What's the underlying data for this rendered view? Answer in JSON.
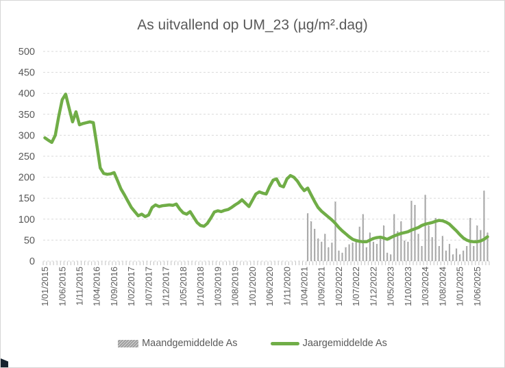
{
  "colors": {
    "line": "#70AD47",
    "bar": "#A6A6A6",
    "text": "#595959",
    "grid": "#D9D9D9",
    "axis_tick": "#C0C0C0",
    "artifact": "#16222E"
  },
  "chart_data": {
    "type": "bar",
    "subtype": "combo-bar-line",
    "title": "As uitvallend op UM_23 (µg/m².dag)",
    "xlabel": "",
    "ylabel": "",
    "grid": "horizontal-dashed",
    "legend_position": "bottom",
    "y_axis": {
      "min": 0,
      "max": 500,
      "step": 50,
      "tick_labels": [
        "0",
        "50",
        "100",
        "150",
        "200",
        "250",
        "300",
        "350",
        "400",
        "450",
        "500"
      ]
    },
    "x_axis": {
      "unit": "month",
      "first_month": "1/01/2015",
      "last_month": "1/09/2025",
      "label_every_n_months": 5,
      "tick_labels": [
        "1/01/2015",
        "1/06/2015",
        "1/11/2015",
        "1/04/2016",
        "1/09/2016",
        "1/02/2017",
        "1/07/2017",
        "1/12/2017",
        "1/05/2018",
        "1/10/2018",
        "1/03/2019",
        "1/08/2019",
        "1/01/2020",
        "1/06/2020",
        "1/11/2020",
        "1/04/2021",
        "1/09/2021",
        "1/02/2022",
        "1/07/2022",
        "1/12/2022",
        "1/05/2023",
        "1/10/2023",
        "1/03/2024",
        "1/08/2024",
        "1/01/2025",
        "1/06/2025"
      ]
    },
    "series": [
      {
        "name": "Maandgemiddelde As",
        "type": "bar",
        "color": "#A6A6A6",
        "start_month": "1/05/2021",
        "start_month_index": 76,
        "monthly_values": [
          114,
          95,
          77,
          54,
          46,
          65,
          33,
          44,
          142,
          25,
          20,
          33,
          40,
          44,
          52,
          82,
          112,
          33,
          68,
          46,
          41,
          54,
          85,
          20,
          16,
          112,
          71,
          95,
          49,
          46,
          144,
          134,
          65,
          36,
          158,
          85,
          57,
          103,
          36,
          60,
          25,
          41,
          16,
          30,
          16,
          25,
          36,
          103,
          36,
          85,
          74,
          168,
          68
        ]
      },
      {
        "name": "Jaargemiddelde As",
        "type": "line",
        "color": "#70AD47",
        "start_month": "1/01/2015",
        "start_month_index": 0,
        "monthly_values": [
          294,
          288,
          283,
          300,
          345,
          385,
          398,
          365,
          332,
          356,
          325,
          328,
          330,
          332,
          330,
          278,
          222,
          209,
          207,
          208,
          211,
          192,
          172,
          158,
          143,
          128,
          118,
          108,
          112,
          106,
          110,
          128,
          134,
          130,
          132,
          133,
          134,
          133,
          136,
          124,
          115,
          112,
          118,
          105,
          92,
          85,
          83,
          90,
          103,
          117,
          120,
          118,
          121,
          123,
          128,
          134,
          139,
          146,
          138,
          130,
          145,
          160,
          165,
          162,
          160,
          178,
          193,
          196,
          180,
          177,
          196,
          204,
          200,
          191,
          178,
          168,
          174,
          158,
          142,
          128,
          119,
          112,
          105,
          98,
          90,
          80,
          72,
          65,
          58,
          52,
          49,
          47,
          46,
          46,
          50,
          54,
          56,
          57,
          55,
          52,
          56,
          60,
          63,
          66,
          68,
          70,
          74,
          77,
          80,
          85,
          88,
          90,
          92,
          95,
          97,
          96,
          93,
          88,
          80,
          72,
          63,
          55,
          50,
          47,
          46,
          46,
          48,
          52,
          58
        ]
      }
    ]
  },
  "legend": {
    "items": [
      {
        "label": "Maandgemiddelde As",
        "swatch": "bar"
      },
      {
        "label": "Jaargemiddelde As",
        "swatch": "line"
      }
    ]
  }
}
